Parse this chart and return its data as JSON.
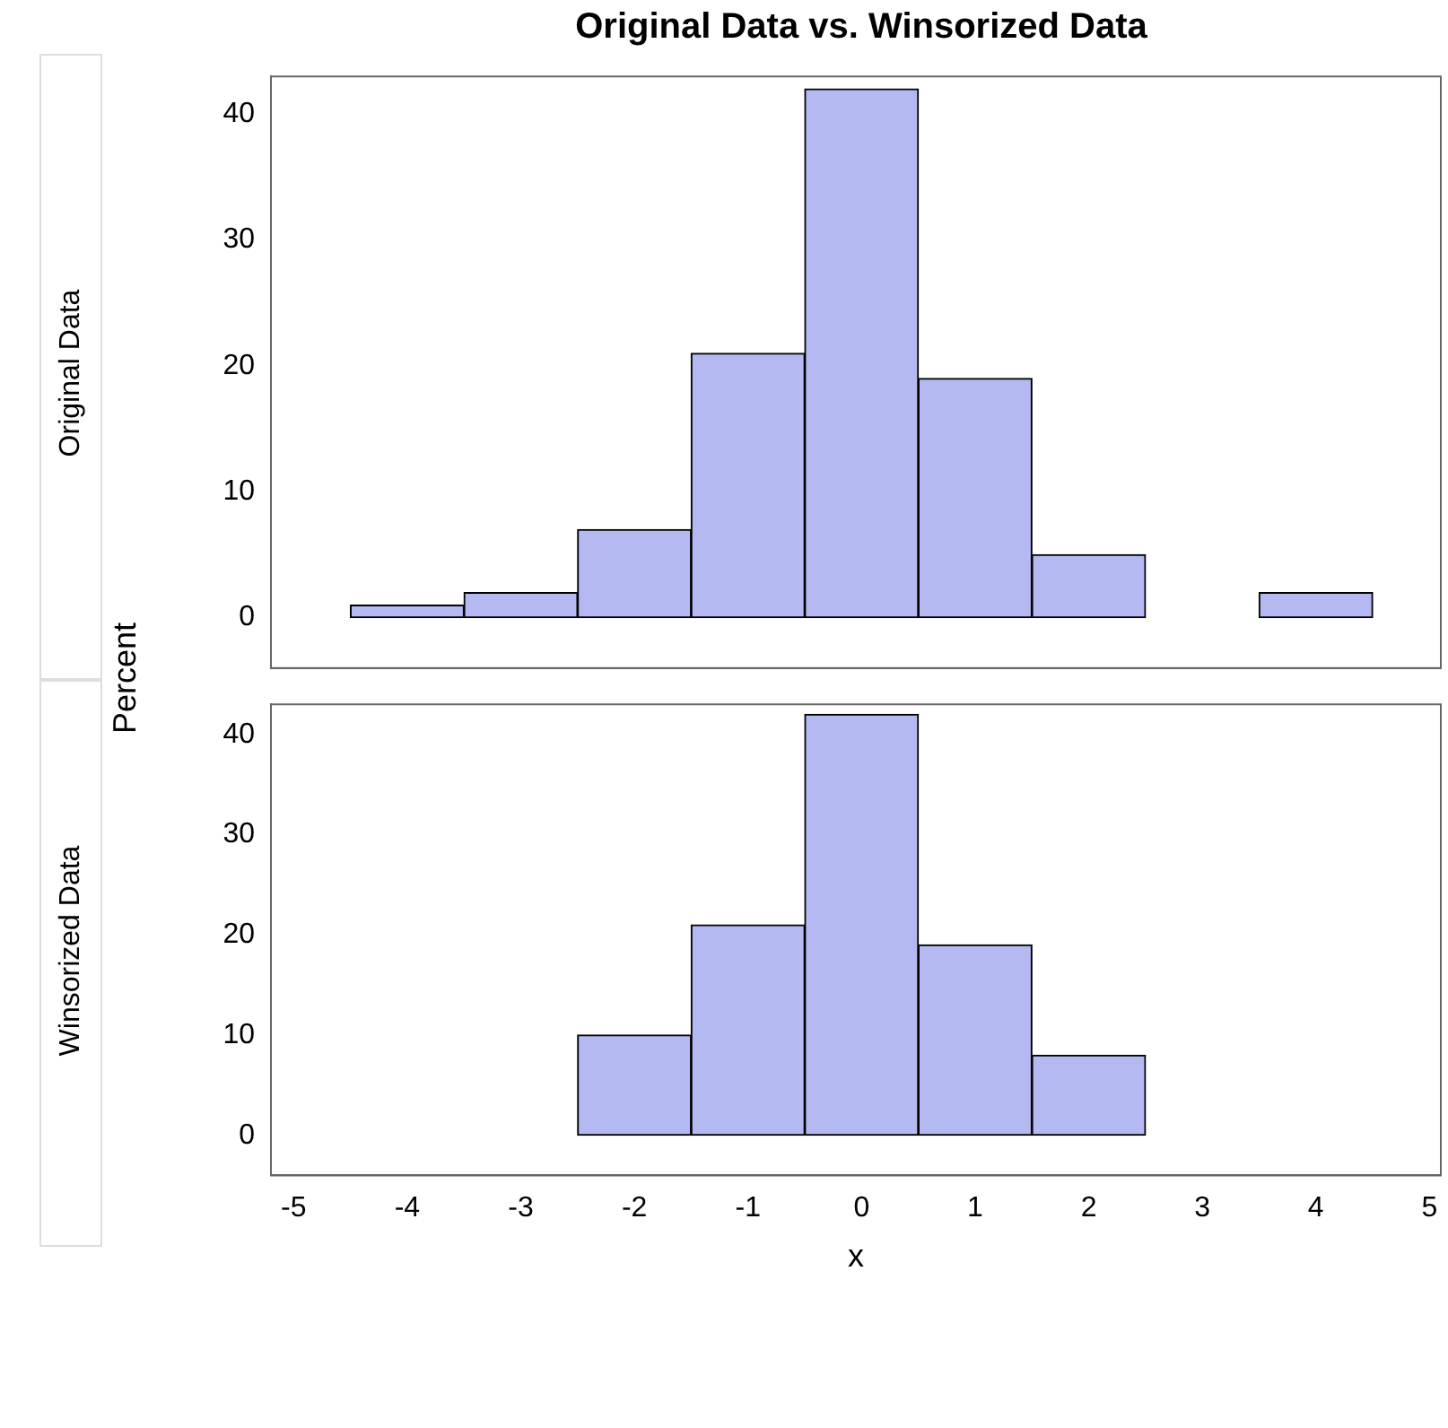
{
  "chart_data": [
    {
      "type": "histogram",
      "title": "Original Data vs. Winsorized Data",
      "subtitle": "Original Data",
      "ylabel": "Percent",
      "bins": [
        -4.5,
        -3.5,
        -2.5,
        -1.5,
        -0.5,
        0.5,
        1.5,
        2.5,
        3.5,
        4.5
      ],
      "values": [
        1,
        2,
        7,
        21,
        42,
        19,
        5,
        0,
        2
      ],
      "color": "#b4b9f2",
      "xlim": [
        -5.2,
        5.1
      ],
      "xticks": [
        -5,
        -4,
        -3,
        -2,
        -1,
        0,
        1,
        2,
        3,
        4,
        5
      ],
      "ylim": [
        -4,
        43
      ],
      "yticks": [
        0,
        10,
        20,
        30,
        40
      ],
      "tick_labels": "y"
    },
    {
      "type": "histogram",
      "subtitle": "Winsorized Data",
      "xlabel": "x",
      "bins": [
        -2.5,
        -1.5,
        -0.5,
        0.5,
        1.5,
        2.5
      ],
      "values": [
        10,
        21,
        42,
        19,
        8
      ],
      "color": "#b4b9f2",
      "xlim": [
        -5.2,
        5.1
      ],
      "xticks": [
        -5,
        -4,
        -3,
        -2,
        -1,
        0,
        1,
        2,
        3,
        4,
        5
      ],
      "ylim": [
        -4,
        43
      ],
      "yticks": [
        0,
        10,
        20,
        30,
        40
      ]
    }
  ]
}
